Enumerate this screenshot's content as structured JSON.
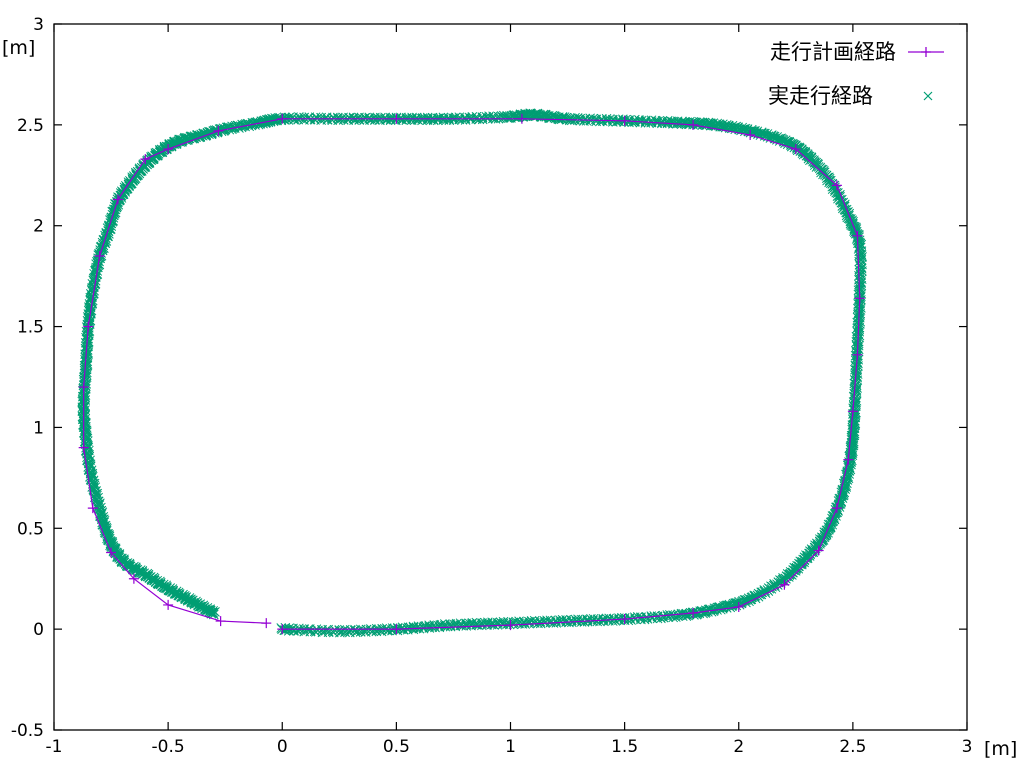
{
  "chart_data": {
    "type": "line",
    "title": "",
    "xlabel": "[m]",
    "ylabel": "[m]",
    "xlim": [
      -1,
      3
    ],
    "ylim": [
      -0.5,
      3
    ],
    "x_ticks": [
      -1,
      -0.5,
      0,
      0.5,
      1,
      1.5,
      2,
      2.5,
      3
    ],
    "x_tick_labels": [
      "-1",
      "-0.5",
      "0",
      "0.5",
      "1",
      "1.5",
      "2",
      "2.5",
      "3"
    ],
    "y_ticks": [
      -0.5,
      0,
      0.5,
      1,
      1.5,
      2,
      2.5,
      3
    ],
    "y_tick_labels": [
      "-0.5",
      "0",
      "0.5",
      "1",
      "1.5",
      "2",
      "2.5",
      "3"
    ],
    "grid": false,
    "legend_position": "top-right",
    "series": [
      {
        "name": "走行計画経路",
        "color": "#9400d3",
        "style": "line-with-plus-markers",
        "x": [
          -0.07,
          -0.27,
          -0.5,
          -0.65,
          -0.75,
          -0.83,
          -0.87,
          -0.87,
          -0.85,
          -0.8,
          -0.72,
          -0.6,
          -0.5,
          -0.28,
          0.0,
          0.5,
          1.05,
          1.5,
          1.8,
          2.05,
          2.25,
          2.43,
          2.52,
          2.53,
          2.52,
          2.5,
          2.48,
          2.43,
          2.35,
          2.2,
          2.0,
          1.8,
          1.5,
          1.0,
          0.5,
          0.0
        ],
        "y": [
          0.03,
          0.04,
          0.12,
          0.25,
          0.38,
          0.6,
          0.9,
          1.2,
          1.5,
          1.85,
          2.13,
          2.33,
          2.38,
          2.47,
          2.53,
          2.53,
          2.53,
          2.52,
          2.5,
          2.45,
          2.38,
          2.2,
          1.95,
          1.64,
          1.36,
          1.08,
          0.84,
          0.6,
          0.39,
          0.22,
          0.11,
          0.08,
          0.05,
          0.02,
          0.0,
          0.0
        ]
      },
      {
        "name": "実走行経路",
        "color": "#009e73",
        "style": "x-markers",
        "x": [
          -0.3,
          -0.4,
          -0.5,
          -0.6,
          -0.7,
          -0.76,
          -0.8,
          -0.84,
          -0.86,
          -0.87,
          -0.86,
          -0.85,
          -0.83,
          -0.8,
          -0.76,
          -0.72,
          -0.66,
          -0.6,
          -0.53,
          -0.45,
          -0.35,
          -0.25,
          -0.1,
          0.0,
          0.25,
          0.5,
          0.75,
          1.0,
          1.1,
          1.25,
          1.5,
          1.75,
          1.9,
          2.05,
          2.2,
          2.3,
          2.4,
          2.48,
          2.53,
          2.53,
          2.52,
          2.51,
          2.5,
          2.48,
          2.44,
          2.38,
          2.3,
          2.2,
          2.05,
          1.9,
          1.75,
          1.5,
          1.25,
          1.0,
          0.75,
          0.5,
          0.25,
          0.0
        ],
        "y": [
          0.08,
          0.14,
          0.2,
          0.27,
          0.34,
          0.45,
          0.6,
          0.78,
          0.95,
          1.1,
          1.3,
          1.5,
          1.68,
          1.85,
          1.98,
          2.12,
          2.22,
          2.3,
          2.37,
          2.42,
          2.45,
          2.48,
          2.51,
          2.53,
          2.53,
          2.53,
          2.53,
          2.54,
          2.55,
          2.53,
          2.52,
          2.51,
          2.5,
          2.47,
          2.42,
          2.35,
          2.22,
          2.05,
          1.9,
          1.65,
          1.4,
          1.15,
          0.95,
          0.78,
          0.62,
          0.47,
          0.36,
          0.25,
          0.15,
          0.1,
          0.07,
          0.05,
          0.04,
          0.03,
          0.02,
          0.0,
          -0.01,
          0.0
        ]
      }
    ]
  }
}
